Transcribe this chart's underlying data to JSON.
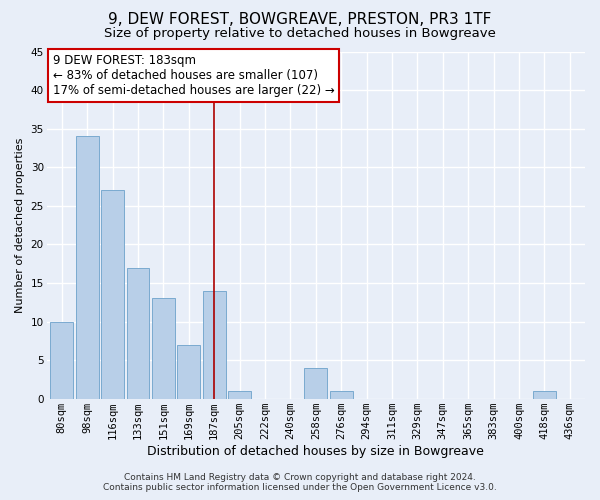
{
  "title": "9, DEW FOREST, BOWGREAVE, PRESTON, PR3 1TF",
  "subtitle": "Size of property relative to detached houses in Bowgreave",
  "xlabel": "Distribution of detached houses by size in Bowgreave",
  "ylabel": "Number of detached properties",
  "bar_labels": [
    "80sqm",
    "98sqm",
    "116sqm",
    "133sqm",
    "151sqm",
    "169sqm",
    "187sqm",
    "205sqm",
    "222sqm",
    "240sqm",
    "258sqm",
    "276sqm",
    "294sqm",
    "311sqm",
    "329sqm",
    "347sqm",
    "365sqm",
    "383sqm",
    "400sqm",
    "418sqm",
    "436sqm"
  ],
  "bar_values": [
    10,
    34,
    27,
    17,
    13,
    7,
    14,
    1,
    0,
    0,
    4,
    1,
    0,
    0,
    0,
    0,
    0,
    0,
    0,
    1,
    0
  ],
  "highlight_index": 6,
  "bar_color": "#b8cfe8",
  "bar_edge_color": "#7aaad0",
  "highlight_line_color": "#aa0000",
  "annotation_text": "9 DEW FOREST: 183sqm\n← 83% of detached houses are smaller (107)\n17% of semi-detached houses are larger (22) →",
  "annotation_box_color": "#ffffff",
  "annotation_box_edge_color": "#cc0000",
  "ylim": [
    0,
    45
  ],
  "yticks": [
    0,
    5,
    10,
    15,
    20,
    25,
    30,
    35,
    40,
    45
  ],
  "footer_line1": "Contains HM Land Registry data © Crown copyright and database right 2024.",
  "footer_line2": "Contains public sector information licensed under the Open Government Licence v3.0.",
  "background_color": "#e8eef8",
  "grid_color": "#ffffff",
  "title_fontsize": 11,
  "subtitle_fontsize": 9.5,
  "xlabel_fontsize": 9,
  "ylabel_fontsize": 8,
  "tick_fontsize": 7.5,
  "annotation_fontsize": 8.5,
  "footer_fontsize": 6.5
}
